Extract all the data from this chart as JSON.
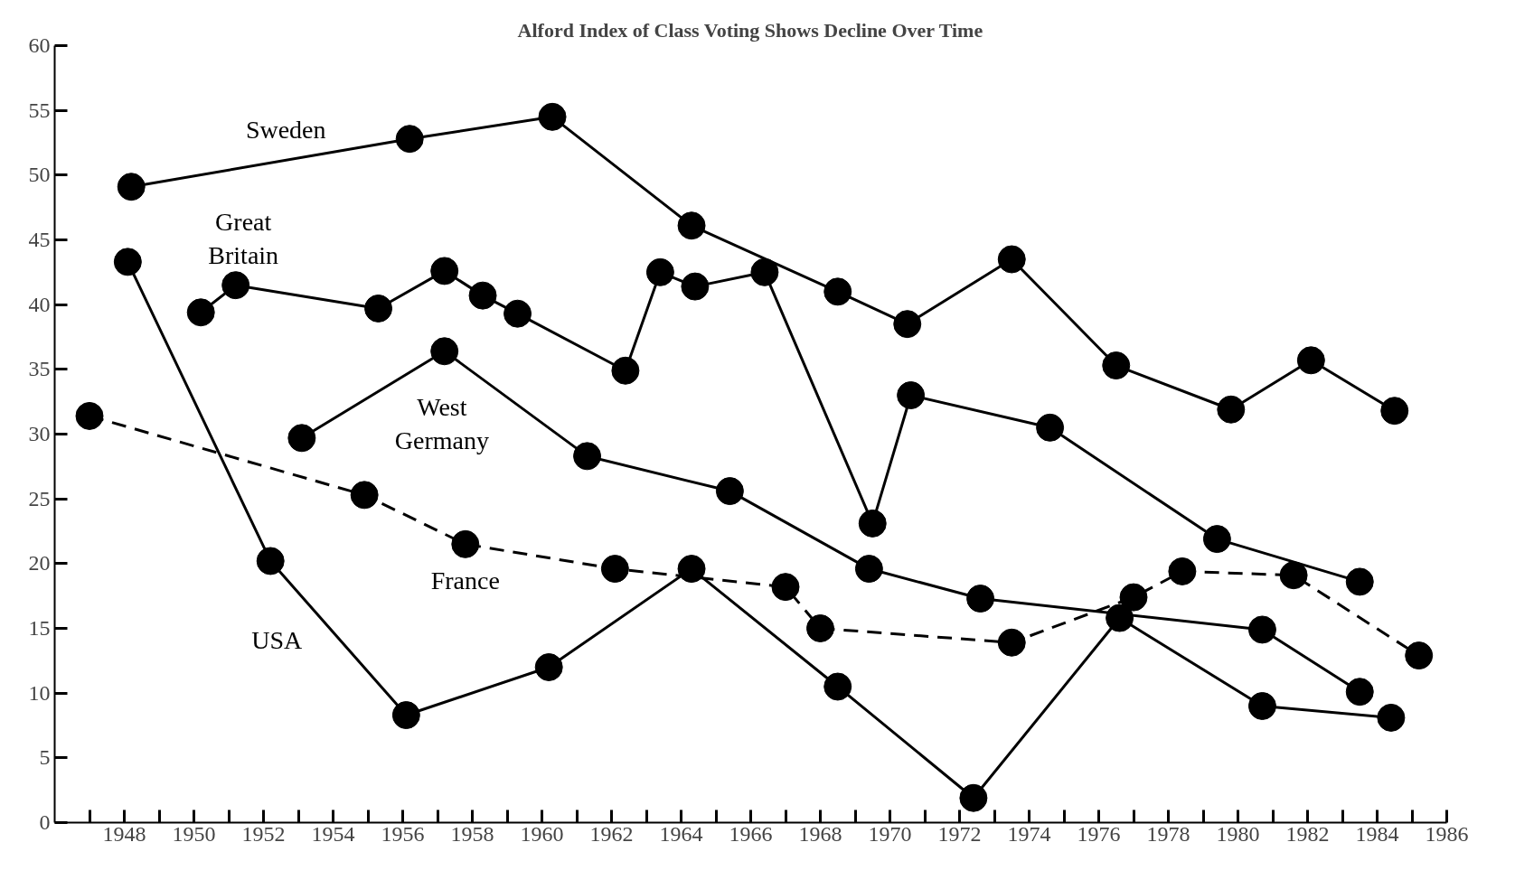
{
  "chart_data": {
    "type": "line",
    "title": "Alford Index of Class Voting Shows Decline Over Time",
    "xlim": [
      1946,
      1986
    ],
    "ylim": [
      0,
      60
    ],
    "xticks": [
      {
        "value": 1947,
        "label": null
      },
      1948,
      {
        "value": 1949,
        "label": null
      },
      1950,
      {
        "value": 1951,
        "label": null
      },
      1952,
      {
        "value": 1953,
        "label": null
      },
      1954,
      {
        "value": 1955,
        "label": null
      },
      1956,
      {
        "value": 1957,
        "label": null
      },
      1958,
      {
        "value": 1959,
        "label": null
      },
      1960,
      {
        "value": 1961,
        "label": null
      },
      1962,
      {
        "value": 1963,
        "label": null
      },
      1964,
      {
        "value": 1965,
        "label": null
      },
      1966,
      {
        "value": 1967,
        "label": null
      },
      1968,
      {
        "value": 1969,
        "label": null
      },
      1970,
      {
        "value": 1971,
        "label": null
      },
      1972,
      {
        "value": 1973,
        "label": null
      },
      1974,
      {
        "value": 1975,
        "label": null
      },
      1976,
      {
        "value": 1977,
        "label": null
      },
      1978,
      {
        "value": 1979,
        "label": null
      },
      1980,
      {
        "value": 1981,
        "label": null
      },
      1982,
      {
        "value": 1983,
        "label": null
      },
      1984,
      {
        "value": 1985,
        "label": null
      },
      1986
    ],
    "yticks": [
      0,
      5,
      10,
      15,
      20,
      25,
      30,
      35,
      40,
      45,
      50,
      55,
      60
    ],
    "grid": false,
    "marker": "circle",
    "series": [
      {
        "name": "Sweden",
        "color": "#000000",
        "line_style": "solid",
        "x": [
          1948.2,
          1956.2,
          1960.3,
          1964.3,
          1968.5,
          1970.5,
          1973.5,
          1976.5,
          1979.8,
          1982.1,
          1984.5
        ],
        "values": [
          49.1,
          52.8,
          54.5,
          46.1,
          41.0,
          38.5,
          43.5,
          35.3,
          31.9,
          35.7,
          31.8
        ]
      },
      {
        "name": "Great\nBritain",
        "color": "#000000",
        "line_style": "solid",
        "x": [
          1950.2,
          1951.2,
          1955.3,
          1957.2,
          1958.3,
          1959.3,
          1962.4,
          1963.4,
          1964.4,
          1966.4,
          1969.5,
          1970.6,
          1974.6,
          1979.4,
          1983.5
        ],
        "values": [
          39.4,
          41.5,
          39.7,
          42.6,
          40.7,
          39.3,
          34.9,
          42.5,
          41.4,
          42.5,
          23.1,
          33.0,
          30.5,
          21.9,
          18.6
        ]
      },
      {
        "name": "West\nGermany",
        "color": "#000000",
        "line_style": "solid",
        "x": [
          1953.1,
          1957.2,
          1961.3,
          1965.4,
          1969.4,
          1972.6,
          1980.7,
          1983.5
        ],
        "values": [
          29.7,
          36.4,
          28.3,
          25.6,
          19.6,
          17.3,
          14.9,
          10.1
        ]
      },
      {
        "name": "France",
        "color": "#000000",
        "line_style": "dashed",
        "x": [
          1947.0,
          1954.9,
          1957.8,
          1962.1,
          1967.0,
          1968.0,
          1973.5,
          1977.0,
          1978.4,
          1981.6,
          1985.2
        ],
        "values": [
          31.4,
          25.3,
          21.5,
          19.6,
          18.2,
          15.0,
          13.9,
          17.4,
          19.4,
          19.1,
          12.9
        ]
      },
      {
        "name": "USA",
        "color": "#000000",
        "line_style": "solid",
        "x": [
          1948.1,
          1952.2,
          1956.1,
          1960.2,
          1964.3,
          1968.5,
          1972.4,
          1976.6,
          1980.7,
          1984.4
        ],
        "values": [
          43.3,
          20.2,
          8.3,
          12.0,
          19.6,
          10.5,
          1.9,
          15.8,
          9.0,
          8.1
        ]
      }
    ]
  }
}
